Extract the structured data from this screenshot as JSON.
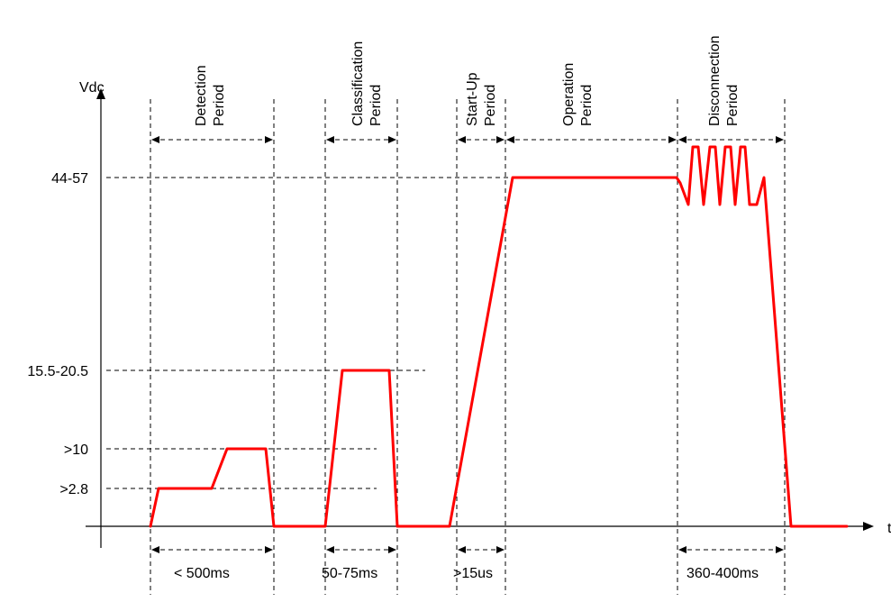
{
  "axes": {
    "y_label": "Vdc",
    "x_label": "t"
  },
  "levels": {
    "l1": ">2.8",
    "l2": ">10",
    "l3": "15.5-20.5",
    "l4": "44-57"
  },
  "periods": {
    "detection": {
      "line1": "Detection",
      "line2": "Period"
    },
    "classification": {
      "line1": "Classification",
      "line2": "Period"
    },
    "startup": {
      "line1": "Start-Up",
      "line2": "Period"
    },
    "operation": {
      "line1": "Operation",
      "line2": "Period"
    },
    "disconnection": {
      "line1": "Disconnection",
      "line2": "Period"
    }
  },
  "durations": {
    "detection": "< 500ms",
    "classification": "50-75ms",
    "startup": ">15us",
    "disconnection": "360-400ms"
  },
  "colors": {
    "waveform": "#ff0000",
    "guides": "#000000"
  }
}
